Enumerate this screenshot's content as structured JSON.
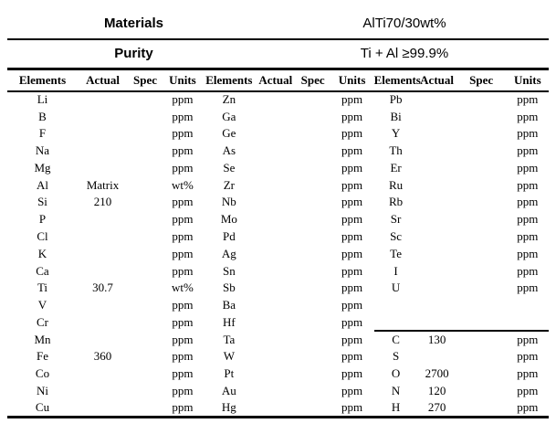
{
  "colors": {
    "background": "#ffffff",
    "text": "#000000",
    "rule_line": "#000000"
  },
  "info_table": {
    "materials_label": "Materials",
    "materials_value": "AlTi70/30wt%",
    "purity_label": "Purity",
    "purity_value": "Ti + Al ≥99.9%"
  },
  "column_headers": [
    "Elements",
    "Actual",
    "Spec",
    "Units",
    "Elements",
    "Actual",
    "Spec",
    "Units",
    "Elements",
    "Actual",
    "Spec",
    "Units"
  ],
  "g3_divider_row_index": 14,
  "rows": [
    [
      "Li",
      "",
      "",
      "ppm",
      "Zn",
      "",
      "",
      "ppm",
      "Pb",
      "",
      "",
      "ppm"
    ],
    [
      "B",
      "",
      "",
      "ppm",
      "Ga",
      "",
      "",
      "ppm",
      "Bi",
      "",
      "",
      "ppm"
    ],
    [
      "F",
      "",
      "",
      "ppm",
      "Ge",
      "",
      "",
      "ppm",
      "Y",
      "",
      "",
      "ppm"
    ],
    [
      "Na",
      "",
      "",
      "ppm",
      "As",
      "",
      "",
      "ppm",
      "Th",
      "",
      "",
      "ppm"
    ],
    [
      "Mg",
      "",
      "",
      "ppm",
      "Se",
      "",
      "",
      "ppm",
      "Er",
      "",
      "",
      "ppm"
    ],
    [
      "Al",
      "Matrix",
      "",
      "wt%",
      "Zr",
      "",
      "",
      "ppm",
      "Ru",
      "",
      "",
      "ppm"
    ],
    [
      "Si",
      "210",
      "",
      "ppm",
      "Nb",
      "",
      "",
      "ppm",
      "Rb",
      "",
      "",
      "ppm"
    ],
    [
      "P",
      "",
      "",
      "ppm",
      "Mo",
      "",
      "",
      "ppm",
      "Sr",
      "",
      "",
      "ppm"
    ],
    [
      "Cl",
      "",
      "",
      "ppm",
      "Pd",
      "",
      "",
      "ppm",
      "Sc",
      "",
      "",
      "ppm"
    ],
    [
      "K",
      "",
      "",
      "ppm",
      "Ag",
      "",
      "",
      "ppm",
      "Te",
      "",
      "",
      "ppm"
    ],
    [
      "Ca",
      "",
      "",
      "ppm",
      "Sn",
      "",
      "",
      "ppm",
      "I",
      "",
      "",
      "ppm"
    ],
    [
      "Ti",
      "30.7",
      "",
      "wt%",
      "Sb",
      "",
      "",
      "ppm",
      "U",
      "",
      "",
      "ppm"
    ],
    [
      "V",
      "",
      "",
      "ppm",
      "Ba",
      "",
      "",
      "ppm",
      "",
      "",
      "",
      ""
    ],
    [
      "Cr",
      "",
      "",
      "ppm",
      "Hf",
      "",
      "",
      "ppm",
      "",
      "",
      "",
      ""
    ],
    [
      "Mn",
      "",
      "",
      "ppm",
      "Ta",
      "",
      "",
      "ppm",
      "C",
      "130",
      "",
      "ppm"
    ],
    [
      "Fe",
      "360",
      "",
      "ppm",
      "W",
      "",
      "",
      "ppm",
      "S",
      "",
      "",
      "ppm"
    ],
    [
      "Co",
      "",
      "",
      "ppm",
      "Pt",
      "",
      "",
      "ppm",
      "O",
      "2700",
      "",
      "ppm"
    ],
    [
      "Ni",
      "",
      "",
      "ppm",
      "Au",
      "",
      "",
      "ppm",
      "N",
      "120",
      "",
      "ppm"
    ],
    [
      "Cu",
      "",
      "",
      "ppm",
      "Hg",
      "",
      "",
      "ppm",
      "H",
      "270",
      "",
      "ppm"
    ]
  ]
}
